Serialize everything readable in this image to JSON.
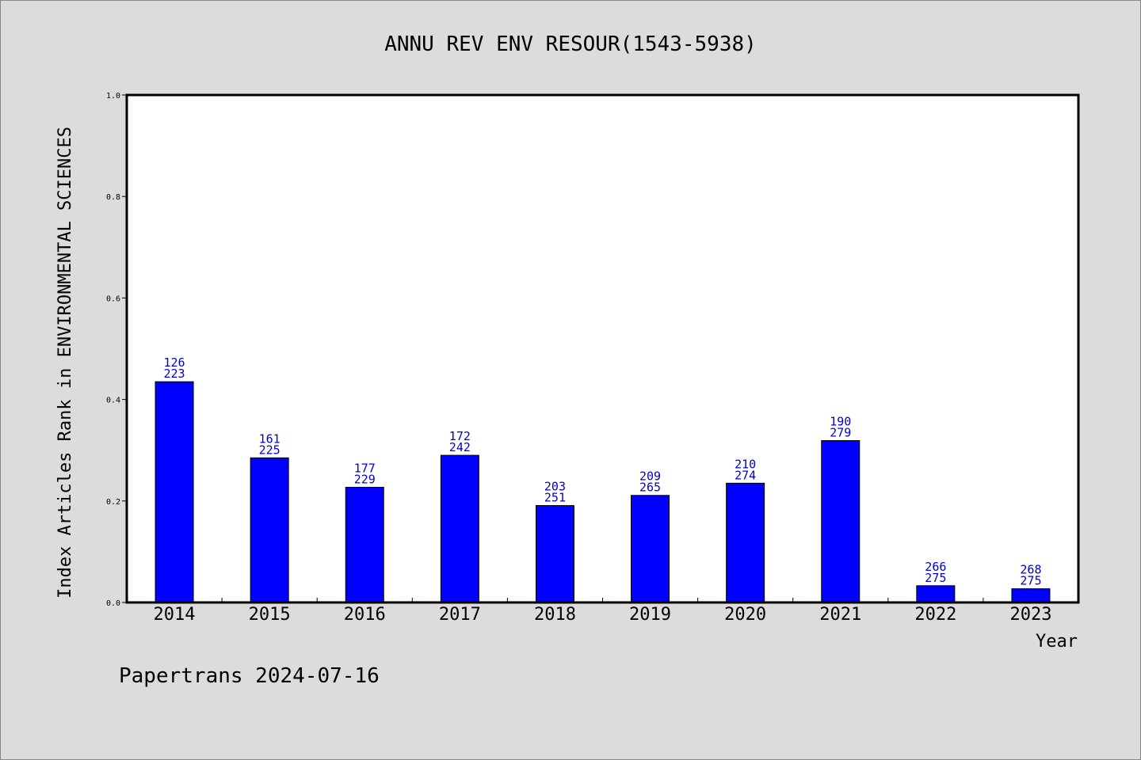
{
  "chart_data": {
    "type": "bar",
    "title": "ANNU REV ENV RESOUR(1543-5938)",
    "xlabel": "Year",
    "ylabel": "Index Articles Rank in ENVIRONMENTAL SCIENCES",
    "ylim": [
      0,
      1.0
    ],
    "yticks": [
      "0.0",
      "0.2",
      "0.4",
      "0.6",
      "0.8",
      "1.0"
    ],
    "grid": false,
    "categories": [
      "2014",
      "2015",
      "2016",
      "2017",
      "2018",
      "2019",
      "2020",
      "2021",
      "2022",
      "2023"
    ],
    "values": [
      0.435,
      0.285,
      0.227,
      0.29,
      0.191,
      0.211,
      0.235,
      0.319,
      0.033,
      0.027
    ],
    "ranks": [
      "126",
      "161",
      "177",
      "172",
      "203",
      "209",
      "210",
      "190",
      "266",
      "268"
    ],
    "totals": [
      "223",
      "225",
      "229",
      "242",
      "251",
      "265",
      "274",
      "279",
      "275",
      "275"
    ],
    "bar_color": "#0000ff",
    "label_color": "#0000cc"
  },
  "footer": "Papertrans 2024-07-16"
}
